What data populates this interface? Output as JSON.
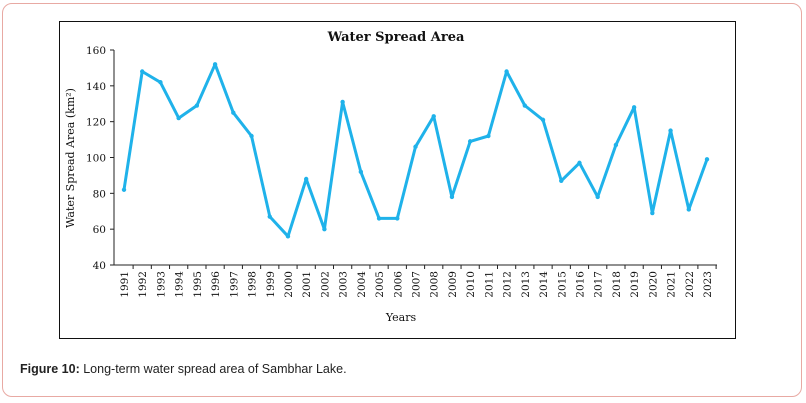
{
  "caption": {
    "label": "Figure 10:",
    "text": " Long-term water spread area of Sambhar Lake."
  },
  "chart_data": {
    "type": "line",
    "title": "Water Spread Area",
    "xlabel": "Years",
    "ylabel": "Water Spread Area (km²)",
    "ylim": [
      40,
      160
    ],
    "yticks": [
      40,
      60,
      80,
      100,
      120,
      140,
      160
    ],
    "line_color": "#1fb2ea",
    "categories": [
      "1991",
      "1992",
      "1993",
      "1994",
      "1995",
      "1996",
      "1997",
      "1998",
      "1999",
      "2000",
      "2001",
      "2002",
      "2003",
      "2004",
      "2005",
      "2006",
      "2007",
      "2008",
      "2009",
      "2010",
      "2011",
      "2012",
      "2013",
      "2014",
      "2015",
      "2016",
      "2017",
      "2018",
      "2019",
      "2020",
      "2021",
      "2022",
      "2023"
    ],
    "series": [
      {
        "name": "Water Spread Area",
        "values": [
          82,
          148,
          142,
          122,
          129,
          152,
          125,
          112,
          67,
          56,
          88,
          60,
          131,
          92,
          66,
          66,
          106,
          123,
          78,
          109,
          112,
          148,
          129,
          121,
          87,
          97,
          78,
          107,
          128,
          69,
          115,
          71,
          99
        ]
      }
    ]
  }
}
